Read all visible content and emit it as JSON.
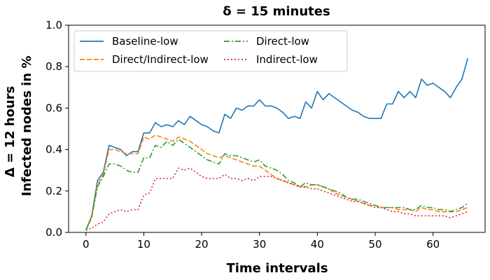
{
  "chart_data": {
    "type": "line",
    "title": "δ = 15 minutes",
    "xlabel": "Time intervals",
    "ylabel_lines": [
      "Δ = 12 hours",
      "Infected nodes in %"
    ],
    "xlim": [
      -3,
      69
    ],
    "ylim": [
      0.0,
      1.0
    ],
    "xticks": [
      0,
      10,
      20,
      30,
      40,
      50,
      60
    ],
    "yticks": [
      0.0,
      0.2,
      0.4,
      0.6,
      0.8,
      1.0
    ],
    "ytick_labels": [
      "0.0",
      "0.2",
      "0.4",
      "0.6",
      "0.8",
      "1.0"
    ],
    "grid": false,
    "legend_placement": "upper-left",
    "x": [
      0,
      1,
      2,
      3,
      4,
      5,
      6,
      7,
      8,
      9,
      10,
      11,
      12,
      13,
      14,
      15,
      16,
      17,
      18,
      19,
      20,
      21,
      22,
      23,
      24,
      25,
      26,
      27,
      28,
      29,
      30,
      31,
      32,
      33,
      34,
      35,
      36,
      37,
      38,
      39,
      40,
      41,
      42,
      43,
      44,
      45,
      46,
      47,
      48,
      49,
      50,
      51,
      52,
      53,
      54,
      55,
      56,
      57,
      58,
      59,
      60,
      61,
      62,
      63,
      64,
      65,
      66
    ],
    "series": [
      {
        "name": "Baseline-low",
        "color": "#1f77b4",
        "dash": "solid",
        "values": [
          0.01,
          0.08,
          0.25,
          0.29,
          0.42,
          0.41,
          0.4,
          0.37,
          0.39,
          0.39,
          0.48,
          0.48,
          0.53,
          0.51,
          0.52,
          0.51,
          0.54,
          0.52,
          0.56,
          0.54,
          0.52,
          0.51,
          0.49,
          0.48,
          0.57,
          0.55,
          0.6,
          0.59,
          0.61,
          0.61,
          0.64,
          0.61,
          0.61,
          0.6,
          0.58,
          0.55,
          0.56,
          0.55,
          0.63,
          0.6,
          0.68,
          0.64,
          0.67,
          0.65,
          0.63,
          0.61,
          0.59,
          0.58,
          0.56,
          0.55,
          0.55,
          0.55,
          0.62,
          0.62,
          0.68,
          0.65,
          0.68,
          0.65,
          0.74,
          0.71,
          0.72,
          0.7,
          0.68,
          0.65,
          0.7,
          0.74,
          0.84
        ]
      },
      {
        "name": "Direct/Indirect-low",
        "color": "#ff7f0e",
        "dash": "dashed",
        "values": [
          0.01,
          0.07,
          0.23,
          0.28,
          0.4,
          0.4,
          0.39,
          0.38,
          0.38,
          0.38,
          0.46,
          0.45,
          0.47,
          0.46,
          0.45,
          0.44,
          0.46,
          0.45,
          0.44,
          0.42,
          0.4,
          0.38,
          0.37,
          0.36,
          0.37,
          0.36,
          0.35,
          0.34,
          0.33,
          0.32,
          0.32,
          0.3,
          0.28,
          0.26,
          0.25,
          0.24,
          0.23,
          0.22,
          0.22,
          0.23,
          0.23,
          0.22,
          0.21,
          0.19,
          0.18,
          0.17,
          0.16,
          0.15,
          0.14,
          0.13,
          0.13,
          0.12,
          0.12,
          0.12,
          0.11,
          0.11,
          0.11,
          0.1,
          0.12,
          0.11,
          0.11,
          0.1,
          0.1,
          0.1,
          0.1,
          0.11,
          0.12
        ]
      },
      {
        "name": "Direct-low",
        "color": "#2ca02c",
        "dash": "dashdot",
        "values": [
          0.01,
          0.08,
          0.22,
          0.27,
          0.33,
          0.33,
          0.32,
          0.3,
          0.29,
          0.29,
          0.36,
          0.36,
          0.42,
          0.41,
          0.44,
          0.42,
          0.45,
          0.43,
          0.41,
          0.39,
          0.37,
          0.35,
          0.34,
          0.33,
          0.38,
          0.37,
          0.37,
          0.36,
          0.35,
          0.34,
          0.35,
          0.32,
          0.31,
          0.3,
          0.28,
          0.25,
          0.24,
          0.22,
          0.24,
          0.23,
          0.23,
          0.22,
          0.21,
          0.2,
          0.19,
          0.17,
          0.16,
          0.16,
          0.15,
          0.14,
          0.13,
          0.12,
          0.12,
          0.12,
          0.12,
          0.12,
          0.11,
          0.11,
          0.13,
          0.12,
          0.12,
          0.11,
          0.11,
          0.1,
          0.11,
          0.12,
          0.14
        ]
      },
      {
        "name": "Indirect-low",
        "color": "#d62728",
        "dash": "dotted",
        "values": [
          0.01,
          0.02,
          0.04,
          0.05,
          0.09,
          0.1,
          0.11,
          0.1,
          0.11,
          0.11,
          0.18,
          0.19,
          0.26,
          0.26,
          0.26,
          0.26,
          0.31,
          0.3,
          0.31,
          0.29,
          0.27,
          0.26,
          0.26,
          0.26,
          0.28,
          0.26,
          0.26,
          0.25,
          0.26,
          0.25,
          0.27,
          0.27,
          0.27,
          0.26,
          0.25,
          0.24,
          0.23,
          0.22,
          0.22,
          0.21,
          0.21,
          0.2,
          0.19,
          0.18,
          0.17,
          0.16,
          0.15,
          0.15,
          0.14,
          0.13,
          0.12,
          0.12,
          0.11,
          0.1,
          0.1,
          0.09,
          0.09,
          0.08,
          0.08,
          0.08,
          0.08,
          0.08,
          0.08,
          0.07,
          0.08,
          0.09,
          0.1
        ]
      }
    ]
  }
}
